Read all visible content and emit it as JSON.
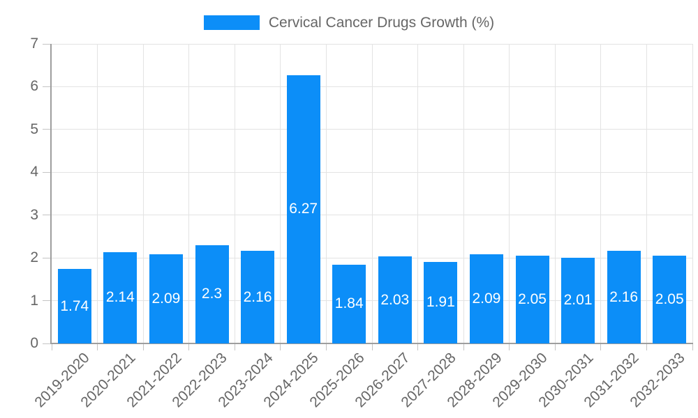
{
  "chart_data": {
    "type": "bar",
    "title": "",
    "legend": "Cervical Cancer Drugs Growth (%)",
    "legend_position": "top",
    "categories": [
      "2019-2020",
      "2020-2021",
      "2021-2022",
      "2022-2023",
      "2023-2024",
      "2024-2025",
      "2025-2026",
      "2026-2027",
      "2027-2028",
      "2028-2029",
      "2029-2030",
      "2030-2031",
      "2031-2032",
      "2032-2033"
    ],
    "values": [
      1.74,
      2.14,
      2.09,
      2.3,
      2.16,
      6.27,
      1.84,
      2.03,
      1.91,
      2.09,
      2.05,
      2.01,
      2.16,
      2.05
    ],
    "xlabel": "",
    "ylabel": "",
    "ylim": [
      0,
      7
    ],
    "yticks": [
      0,
      1,
      2,
      3,
      4,
      5,
      6,
      7
    ],
    "grid": true,
    "bar_value_labels": true,
    "x_label_rotation_deg": -45,
    "colors": {
      "bar": "#0c8ef8",
      "grid_line": "#e3e3e3",
      "axis_line": "#9e9e9e",
      "tick_mark": "#c4c4c4",
      "tick_text": "#666666",
      "value_label_text": "#ffffff",
      "background": "#ffffff"
    }
  }
}
